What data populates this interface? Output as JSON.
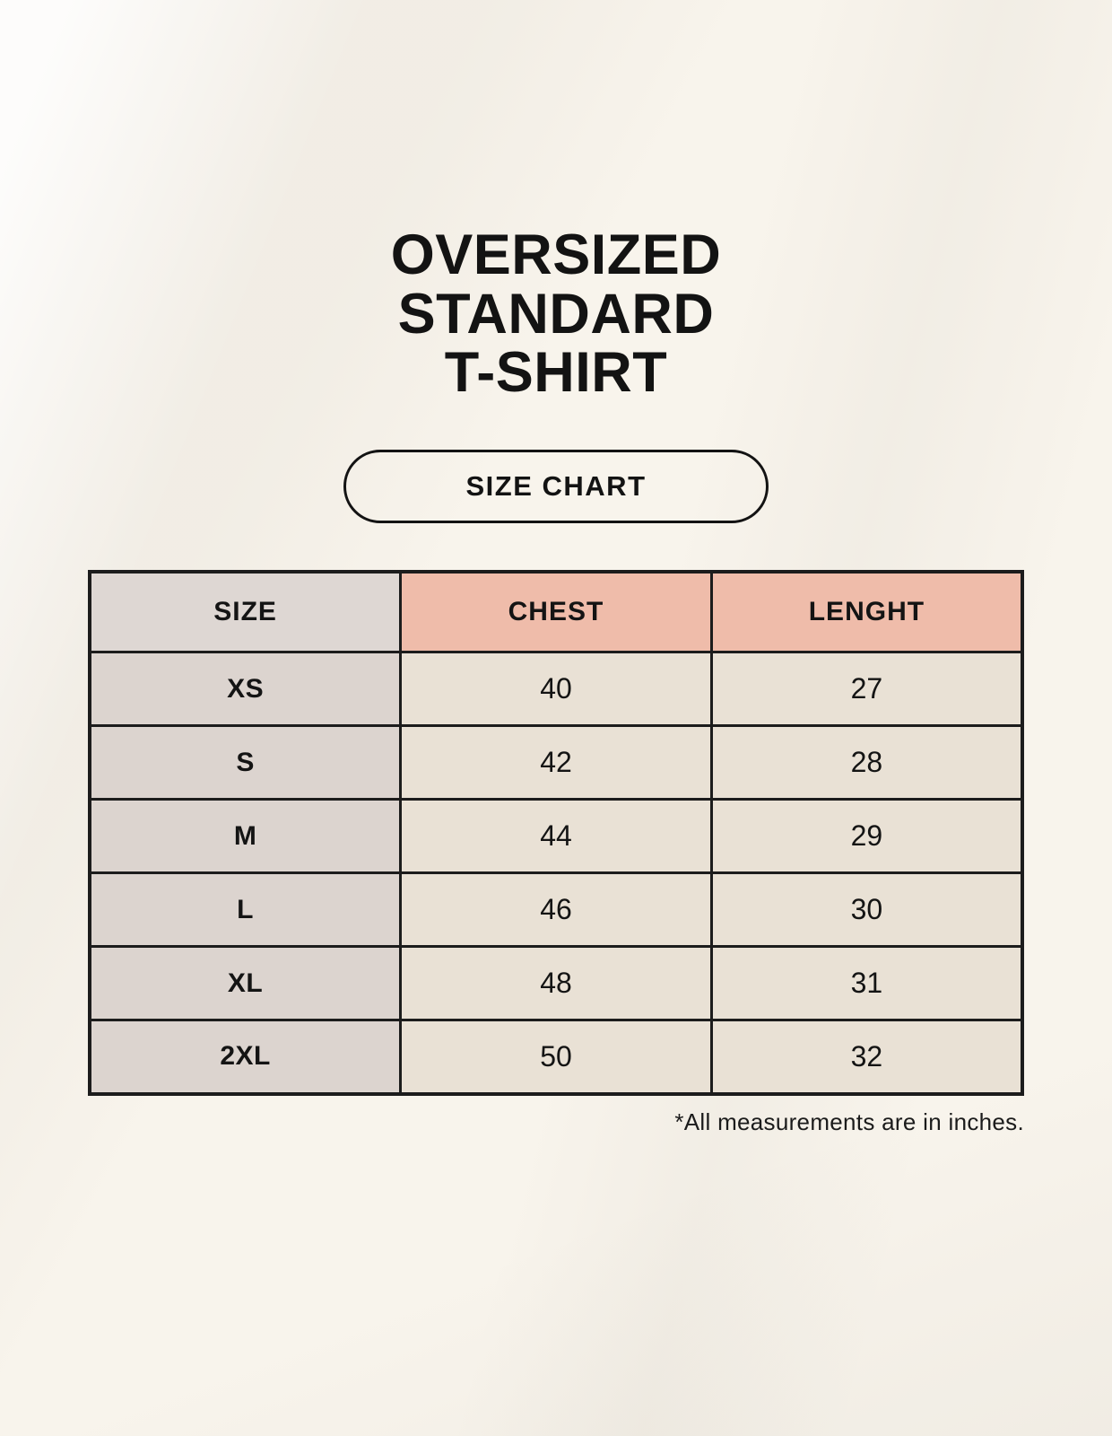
{
  "title": {
    "lines": [
      "OVERSIZED",
      "STANDARD",
      "T-SHIRT"
    ]
  },
  "badge": {
    "label": "SIZE CHART"
  },
  "footnote": "*All measurements are in inches.",
  "colors": {
    "background": "#f8f4ec",
    "size_header_bg": "#ded7d3",
    "measure_header_bg": "#efbcaa",
    "size_column_bg": "#dcd4cf",
    "value_cell_bg": "#e9e1d5",
    "border": "#1c1c1c",
    "text": "#131313"
  },
  "chart_data": {
    "type": "table",
    "title": "OVERSIZED STANDARD T-SHIRT — SIZE CHART",
    "columns": [
      "SIZE",
      "CHEST",
      "LENGHT"
    ],
    "rows": [
      [
        "XS",
        "40",
        "27"
      ],
      [
        "S",
        "42",
        "28"
      ],
      [
        "M",
        "44",
        "29"
      ],
      [
        "L",
        "46",
        "30"
      ],
      [
        "XL",
        "48",
        "31"
      ],
      [
        "2XL",
        "50",
        "32"
      ]
    ],
    "units": "inches"
  }
}
